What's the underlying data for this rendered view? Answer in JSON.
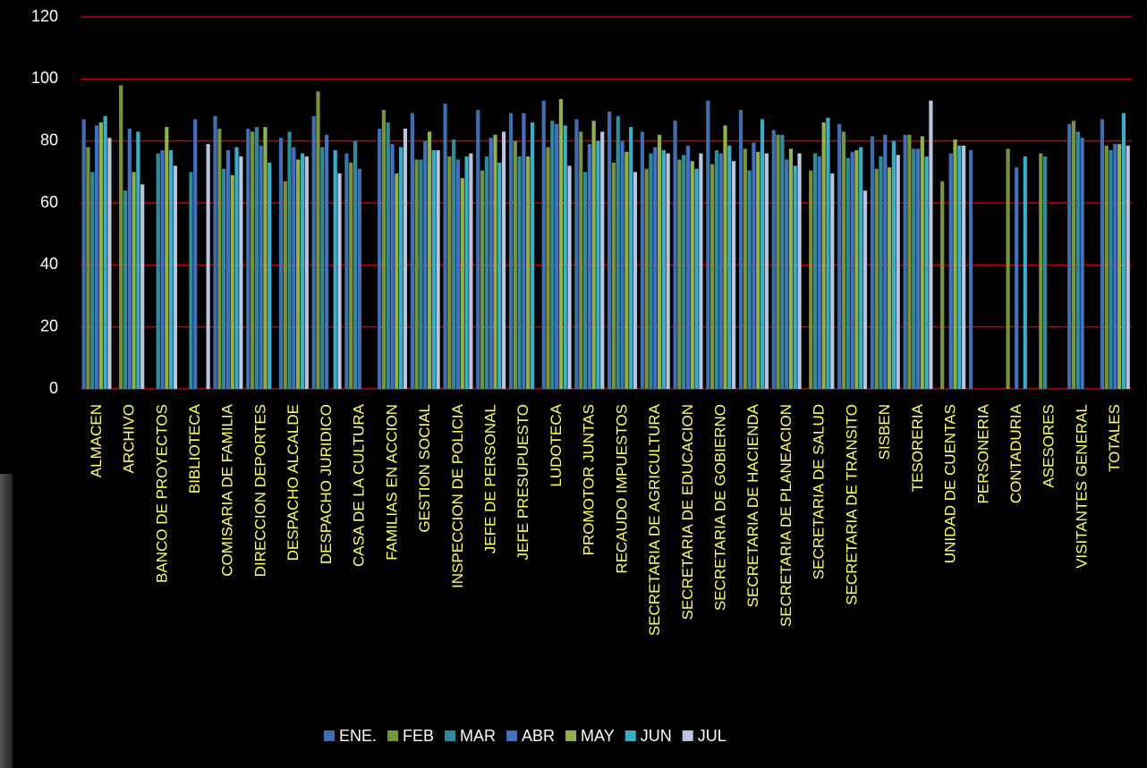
{
  "chart_data": {
    "type": "bar",
    "categories": [
      "ALMACEN",
      "ARCHIVO",
      "BANCO DE PROYECTOS",
      "BIBLIOTECA",
      "COMISARIA DE FAMILIA",
      "DIRECCION DEPORTES",
      "DESPACHO ALCALDE",
      "DESPACHO JURIDICO",
      "CASA DE LA CULTURA",
      "FAMILIAS EN ACCION",
      "GESTION SOCIAL",
      "INSPECCION DE POLICIA",
      "JEFE DE PERSONAL",
      "JEFE PRESUPUESTO",
      "LUDOTECA",
      "PROMOTOR JUNTAS",
      "RECAUDO IMPUESTOS",
      "SECRETARIA DE AGRICULTURA",
      "SECRETARIA DE EDUCACION",
      "SECRETARIA DE GOBIERNO",
      "SECRETARIA DE HACIENDA",
      "SECRETARIA DE PLANEACION",
      "SECRETARIA DE SALUD",
      "SECRETARIA DE TRANSITO",
      "SISBEN",
      "TESORERIA",
      "UNIDAD DE CUENTAS",
      "PERSONERIA",
      "CONTADURIA",
      "ASESORES",
      "VISITANTES GENERAL",
      "TOTALES"
    ],
    "series": [
      {
        "name": "ENE.",
        "color": "#3f6fb0",
        "values": [
          87,
          null,
          null,
          null,
          88,
          84,
          81,
          88,
          76,
          84,
          89,
          92,
          90,
          89,
          93,
          87,
          89.5,
          83,
          86.5,
          93,
          90,
          83.5,
          null,
          85.5,
          81.5,
          82,
          null,
          77,
          null,
          null,
          85.5,
          87
        ]
      },
      {
        "name": "FEB",
        "color": "#77933c",
        "values": [
          78,
          98,
          null,
          null,
          84,
          83,
          67,
          96,
          73,
          90,
          74,
          75,
          70.5,
          80,
          78,
          83,
          73,
          71,
          74,
          72.5,
          77.5,
          82,
          70.5,
          83,
          71,
          82,
          67,
          null,
          77.5,
          76,
          86.5,
          78.5
        ]
      },
      {
        "name": "MAR",
        "color": "#2f8a9e",
        "values": [
          70,
          64,
          76,
          70,
          71,
          84.5,
          83,
          78,
          80,
          86,
          74,
          80.5,
          75,
          75,
          86.5,
          70,
          88,
          76,
          75.5,
          77,
          70.5,
          82,
          76,
          74.5,
          75,
          77.5,
          null,
          null,
          null,
          75,
          83,
          77
        ]
      },
      {
        "name": "ABR",
        "color": "#4470c0",
        "values": [
          85,
          84,
          77,
          87,
          77,
          78.5,
          78,
          82,
          71,
          79,
          80,
          74,
          81,
          89,
          85.5,
          79,
          80,
          78,
          78.5,
          76,
          79.5,
          74,
          75,
          76.5,
          82,
          77.5,
          76,
          null,
          71.5,
          null,
          81,
          79
        ]
      },
      {
        "name": "MAY",
        "color": "#8fb24a",
        "values": [
          86,
          70,
          84.5,
          null,
          69,
          84.5,
          74,
          null,
          null,
          69.5,
          83,
          68,
          82,
          75,
          93.5,
          86.5,
          76.5,
          82,
          73.5,
          85,
          76.5,
          77.5,
          86,
          77,
          71.5,
          81.5,
          80.5,
          null,
          null,
          null,
          null,
          79
        ]
      },
      {
        "name": "JUN",
        "color": "#3aaec8",
        "values": [
          88,
          83,
          77,
          null,
          78,
          73,
          76,
          77,
          null,
          78,
          77,
          75,
          73,
          86,
          85,
          80,
          84.5,
          77,
          71,
          78.5,
          87,
          72,
          87.5,
          78,
          80,
          75,
          78.5,
          null,
          75,
          null,
          null,
          89
        ]
      },
      {
        "name": "JUL",
        "color": "#b8c4e0",
        "values": [
          81,
          66,
          72,
          79,
          75,
          null,
          75,
          69.5,
          null,
          84,
          77,
          76,
          83,
          null,
          72,
          83,
          70,
          76,
          76,
          73.5,
          76,
          76,
          69.5,
          64,
          75.5,
          93,
          78.5,
          null,
          null,
          null,
          null,
          78.5
        ]
      }
    ],
    "ylim": [
      0,
      120
    ],
    "yticks": [
      0,
      20,
      40,
      60,
      80,
      100,
      120
    ],
    "grid": true,
    "legend": "bottom"
  }
}
